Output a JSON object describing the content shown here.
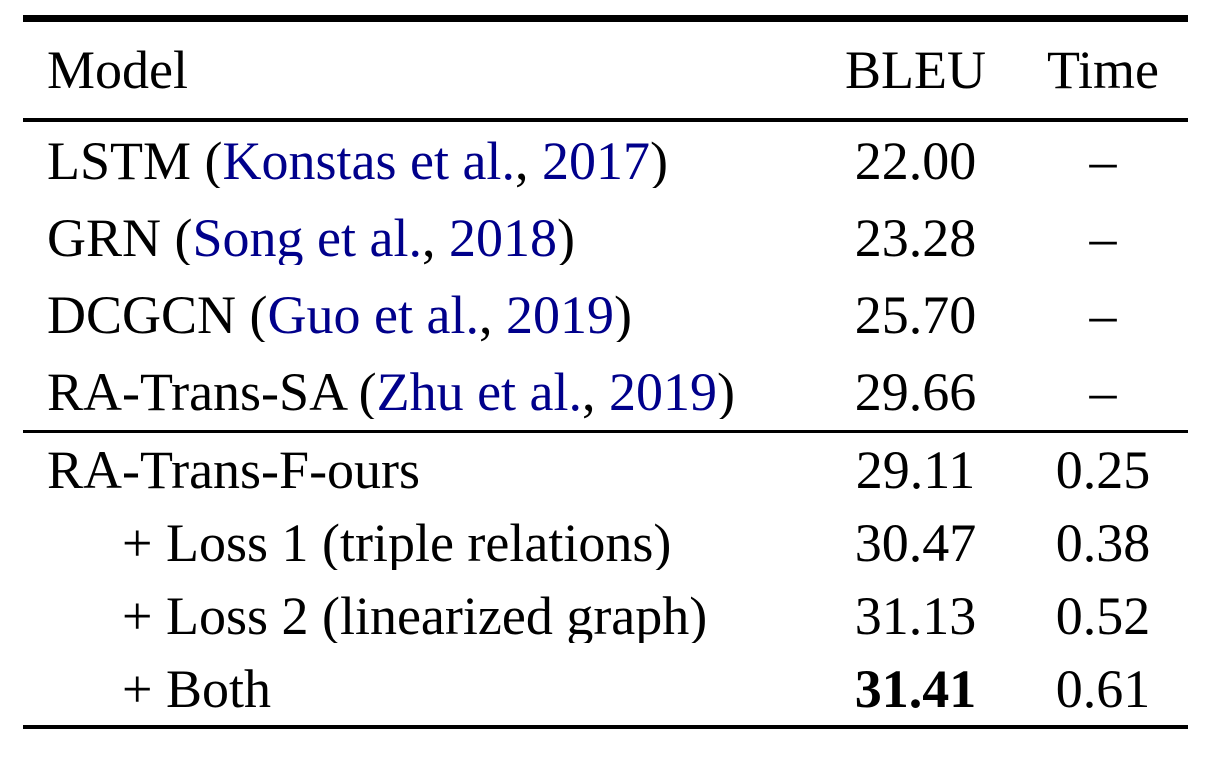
{
  "colors": {
    "text": "#000000",
    "citation_link": "#00008B",
    "background": "#ffffff",
    "rules": "#000000"
  },
  "table": {
    "columns": {
      "model": "Model",
      "bleu": "BLEU",
      "time": "Time"
    },
    "rows": [
      {
        "model_pre": "LSTM (",
        "cite_author": "Konstas et al.",
        "cite_sep": ", ",
        "cite_year": "2017",
        "model_post": ")",
        "bleu": "22.00",
        "time": "–"
      },
      {
        "model_pre": "GRN (",
        "cite_author": "Song et al.",
        "cite_sep": ", ",
        "cite_year": "2018",
        "model_post": ")",
        "bleu": "23.28",
        "time": "–"
      },
      {
        "model_pre": "DCGCN (",
        "cite_author": "Guo et al.",
        "cite_sep": ", ",
        "cite_year": "2019",
        "model_post": ")",
        "bleu": "25.70",
        "time": "–"
      },
      {
        "model_pre": "RA-Trans-SA (",
        "cite_author": "Zhu et al.",
        "cite_sep": ", ",
        "cite_year": "2019",
        "model_post": ")",
        "bleu": "29.66",
        "time": "–"
      },
      {
        "model_pre": "RA-Trans-F-ours",
        "bleu": "29.11",
        "time": "0.25"
      },
      {
        "model_pre": "+ Loss 1 (triple relations)",
        "bleu": "30.47",
        "time": "0.38"
      },
      {
        "model_pre": "+ Loss 2 (linearized graph)",
        "bleu": "31.13",
        "time": "0.52"
      },
      {
        "model_pre": "+ Both",
        "bleu": "31.41",
        "time": "0.61"
      }
    ]
  },
  "chart_data": {
    "type": "table",
    "title": "",
    "columns": [
      "Model",
      "BLEU",
      "Time"
    ],
    "rows": [
      [
        "LSTM (Konstas et al., 2017)",
        22.0,
        null
      ],
      [
        "GRN (Song et al., 2018)",
        23.28,
        null
      ],
      [
        "DCGCN (Guo et al., 2019)",
        25.7,
        null
      ],
      [
        "RA-Trans-SA (Zhu et al., 2019)",
        29.66,
        null
      ],
      [
        "RA-Trans-F-ours",
        29.11,
        0.25
      ],
      [
        "+ Loss 1 (triple relations)",
        30.47,
        0.38
      ],
      [
        "+ Loss 2 (linearized graph)",
        31.13,
        0.52
      ],
      [
        "+ Both",
        31.41,
        0.61
      ]
    ],
    "notes": "Best BLEU (31.41) shown in bold; dashes indicate time not reported"
  }
}
